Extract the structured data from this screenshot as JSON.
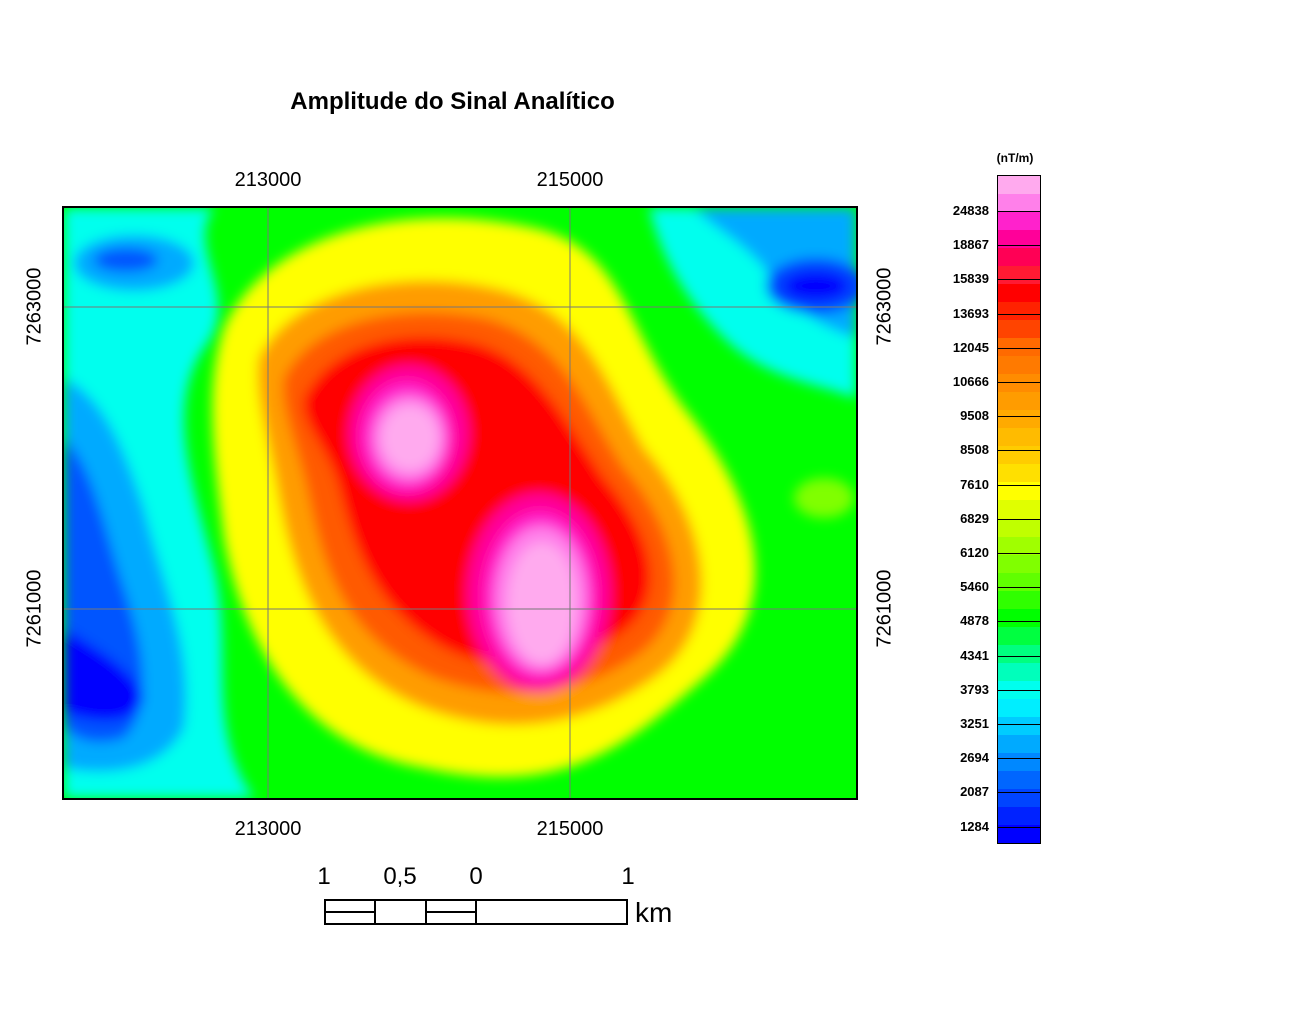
{
  "title": "Amplitude do Sinal Analítico",
  "map": {
    "x_ticks_top": [
      "213000",
      "215000"
    ],
    "x_ticks_bottom": [
      "213000",
      "215000"
    ],
    "y_ticks_left": [
      "7263000",
      "7261000"
    ],
    "y_ticks_right": [
      "7263000",
      "7261000"
    ],
    "gridlines": true
  },
  "legend": {
    "unit": "(nT/m)",
    "labels": [
      "24838",
      "18867",
      "15839",
      "13693",
      "12045",
      "10666",
      "9508",
      "8508",
      "7610",
      "6829",
      "6120",
      "5460",
      "4878",
      "4341",
      "3793",
      "3251",
      "2694",
      "2087",
      "1284"
    ],
    "colors_top_to_bottom": [
      "#ffaaee",
      "#ff80ea",
      "#ff22cc",
      "#ff0099",
      "#ff0055",
      "#ff1a33",
      "#ff0000",
      "#ff2200",
      "#ff4400",
      "#ff6a00",
      "#ff7a00",
      "#ff8c00",
      "#ff9c00",
      "#ffaa00",
      "#ffbb00",
      "#ffcc00",
      "#ffe000",
      "#ffff00",
      "#e0ff00",
      "#c0ff00",
      "#a0ff00",
      "#80ff00",
      "#60ff00",
      "#30ff00",
      "#00ff00",
      "#00ff40",
      "#00ff80",
      "#00ffbb",
      "#00ffee",
      "#00eeff",
      "#00ccff",
      "#00aaff",
      "#0088ff",
      "#0066ff",
      "#0044ff",
      "#0022ff",
      "#0000ff"
    ]
  },
  "scale_bar": {
    "labels": [
      "1",
      "0,5",
      "0",
      "1"
    ],
    "unit": "km"
  }
}
